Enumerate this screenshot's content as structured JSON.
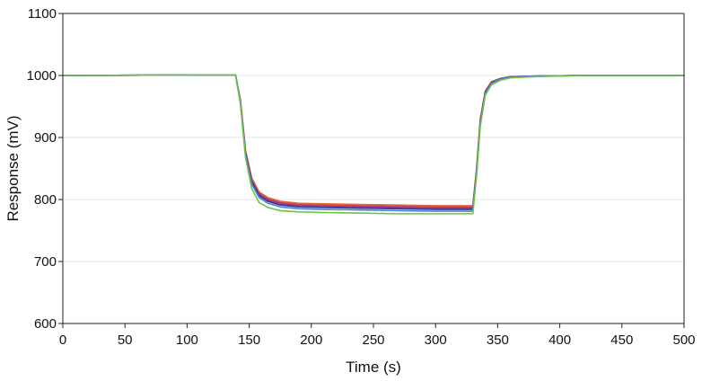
{
  "chart_data": {
    "type": "line",
    "title": "",
    "xlabel": "Time (s)",
    "ylabel": "Response (mV)",
    "xlim": [
      0,
      500
    ],
    "ylim": [
      600,
      1100
    ],
    "xticks": [
      0,
      50,
      100,
      150,
      200,
      250,
      300,
      350,
      400,
      450,
      500
    ],
    "yticks": [
      600,
      700,
      800,
      900,
      1000,
      1100
    ],
    "xtick_labels": [
      "0",
      "50",
      "100",
      "150",
      "200",
      "250",
      "300",
      "350",
      "400",
      "450",
      "500"
    ],
    "ytick_labels": [
      "600",
      "700",
      "800",
      "900",
      "1000",
      "1100"
    ],
    "grid": "horizontal",
    "legend": "none",
    "series": [
      {
        "color": "#e8663a",
        "x": [
          0,
          139,
          143,
          147,
          152,
          158,
          165,
          175,
          190,
          210,
          240,
          270,
          300,
          330,
          333,
          336,
          340,
          345,
          352,
          360,
          380,
          420,
          460,
          500
        ],
        "y": [
          1000,
          1001,
          960,
          880,
          835,
          812,
          803,
          797,
          794,
          793,
          792,
          791,
          790,
          790,
          850,
          930,
          975,
          990,
          995,
          998,
          999,
          1000,
          1000,
          1000
        ]
      },
      {
        "color": "#d64545",
        "x": [
          0,
          139,
          143,
          147,
          152,
          158,
          165,
          175,
          190,
          210,
          240,
          270,
          300,
          330,
          333,
          336,
          340,
          345,
          352,
          360,
          380,
          420,
          460,
          500
        ],
        "y": [
          1000,
          1001,
          958,
          878,
          832,
          810,
          801,
          795,
          792,
          791,
          790,
          789,
          788,
          788,
          848,
          928,
          974,
          989,
          995,
          998,
          999,
          1000,
          1000,
          1000
        ]
      },
      {
        "color": "#8a3a9a",
        "x": [
          0,
          139,
          143,
          147,
          152,
          158,
          165,
          175,
          190,
          210,
          240,
          270,
          300,
          330,
          333,
          336,
          340,
          345,
          352,
          360,
          380,
          420,
          460,
          500
        ],
        "y": [
          1000,
          1001,
          957,
          876,
          830,
          808,
          799,
          793,
          790,
          789,
          788,
          787,
          786,
          786,
          846,
          926,
          973,
          989,
          995,
          998,
          999,
          1000,
          1000,
          1000
        ]
      },
      {
        "color": "#2f3f9e",
        "x": [
          0,
          139,
          143,
          147,
          152,
          158,
          165,
          175,
          190,
          210,
          240,
          270,
          300,
          330,
          333,
          336,
          340,
          345,
          352,
          360,
          380,
          420,
          460,
          500
        ],
        "y": [
          1000,
          1001,
          956,
          874,
          828,
          806,
          797,
          791,
          788,
          787,
          786,
          785,
          784,
          784,
          844,
          924,
          972,
          988,
          994,
          997,
          999,
          1000,
          1000,
          1000
        ]
      },
      {
        "color": "#4f86c6",
        "x": [
          0,
          139,
          143,
          147,
          152,
          158,
          165,
          175,
          190,
          210,
          240,
          270,
          300,
          330,
          333,
          336,
          340,
          345,
          352,
          360,
          380,
          420,
          460,
          500
        ],
        "y": [
          1000,
          1001,
          955,
          872,
          825,
          803,
          794,
          788,
          785,
          784,
          783,
          782,
          781,
          781,
          842,
          922,
          971,
          987,
          994,
          997,
          999,
          1000,
          1000,
          1000
        ]
      },
      {
        "color": "#6cc24a",
        "x": [
          0,
          139,
          143,
          147,
          152,
          158,
          165,
          175,
          190,
          210,
          240,
          270,
          300,
          330,
          333,
          336,
          340,
          345,
          352,
          360,
          380,
          420,
          460,
          500
        ],
        "y": [
          1000,
          1001,
          953,
          868,
          818,
          795,
          787,
          782,
          780,
          779,
          778,
          777,
          777,
          777,
          838,
          918,
          968,
          985,
          992,
          996,
          998,
          1000,
          1000,
          1000
        ]
      }
    ]
  }
}
